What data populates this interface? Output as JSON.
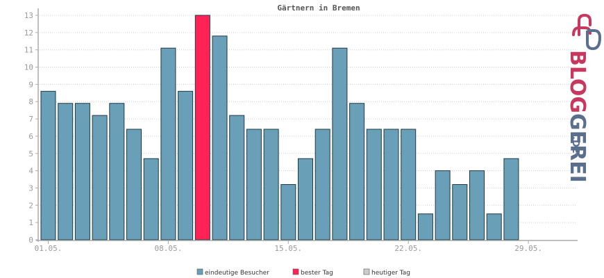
{
  "chart_data": {
    "type": "bar",
    "title": "Gärtnern in Bremen",
    "xlabel": "",
    "ylabel": "",
    "ylim": [
      0,
      13
    ],
    "yticks": [
      "0",
      "1",
      "2",
      "3",
      "4",
      "5",
      "6",
      "7",
      "8",
      "9",
      "10",
      "11",
      "12",
      "13"
    ],
    "xtick_labels": [
      "01.05.",
      "08.05.",
      "15.05.",
      "22.05.",
      "29.05."
    ],
    "xtick_days": [
      1,
      8,
      15,
      22,
      29
    ],
    "days": [
      1,
      2,
      3,
      4,
      5,
      6,
      7,
      8,
      9,
      10,
      11,
      12,
      13,
      14,
      15,
      16,
      17,
      18,
      19,
      20,
      21,
      22,
      23,
      24,
      25,
      26,
      27,
      28,
      29,
      30,
      31
    ],
    "values": [
      8.6,
      7.9,
      7.9,
      7.2,
      7.9,
      6.4,
      4.7,
      11.1,
      8.6,
      13,
      11.8,
      7.2,
      6.4,
      6.4,
      3.2,
      4.7,
      6.4,
      11.1,
      7.9,
      6.4,
      6.4,
      6.4,
      1.5,
      4.0,
      3.2,
      4.0,
      1.5,
      4.7,
      0,
      0,
      0
    ],
    "highlight_index": 9,
    "grid": true,
    "legend_position": "bottom-center",
    "series": [
      {
        "name": "eindeutige Besucher",
        "color": "#6a9fb8"
      },
      {
        "name": "bester Tag",
        "color": "#ff2255"
      },
      {
        "name": "heutiger Tag",
        "color": "#cccccc"
      }
    ]
  },
  "brand": {
    "name": "BLOGGEREI",
    "tld": ".DE",
    "colors": {
      "pink": "#c8385e",
      "slate": "#5a6f8e"
    }
  }
}
